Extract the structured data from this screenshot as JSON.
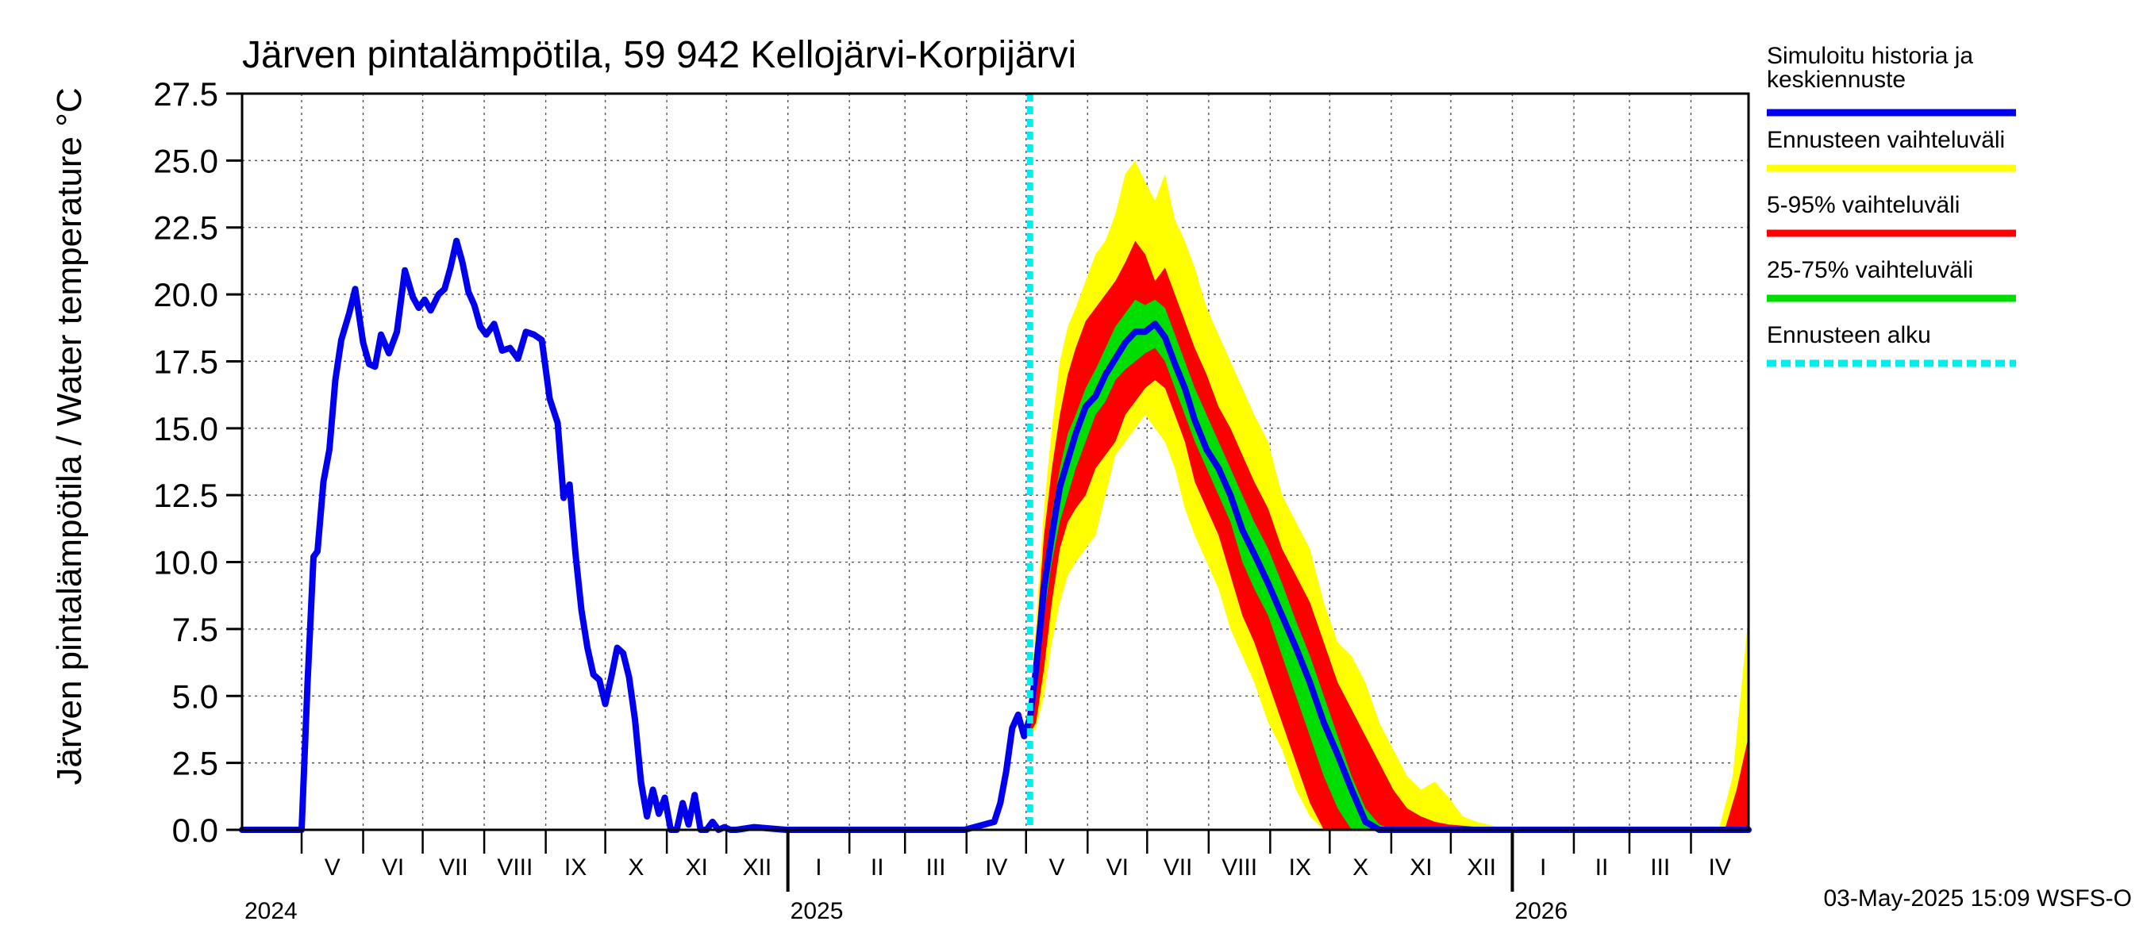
{
  "chart_data": {
    "type": "area",
    "title": "Järven pintalämpötila, 59 942 Kellojärvi-Korpijärvi",
    "ylabel": "Järven pintalämpötila / Water temperature °C",
    "ylim": [
      0,
      27.5
    ],
    "yticks": [
      "0.0",
      "2.5",
      "5.0",
      "7.5",
      "10.0",
      "12.5",
      "15.0",
      "17.5",
      "20.0",
      "22.5",
      "25.0",
      "27.5"
    ],
    "xlim": [
      "2024-04-01",
      "2026-04-30"
    ],
    "x_month_labels": [
      "V",
      "VI",
      "VII",
      "VIII",
      "IX",
      "X",
      "XI",
      "XII",
      "I",
      "II",
      "III",
      "IV",
      "V",
      "VI",
      "VII",
      "VIII",
      "IX",
      "X",
      "XI",
      "XII",
      "I",
      "II",
      "III",
      "IV"
    ],
    "x_year_labels": [
      "2024",
      "2025",
      "2026"
    ],
    "grid": true,
    "forecast_start": "2025-05-03",
    "legend_position": "right",
    "legend": [
      {
        "label_line1": "Simuloitu historia ja",
        "label_line2": "keskiennuste",
        "color": "#0000ee",
        "style": "solid"
      },
      {
        "label_line1": "Ennusteen vaihteluväli",
        "label_line2": "",
        "color": "#ffff00",
        "style": "solid"
      },
      {
        "label_line1": "5-95% vaihteluväli",
        "label_line2": "",
        "color": "#ff0000",
        "style": "solid"
      },
      {
        "label_line1": "25-75% vaihteluväli",
        "label_line2": "",
        "color": "#00dd00",
        "style": "solid"
      },
      {
        "label_line1": "Ennusteen alku",
        "label_line2": "",
        "color": "#00eeee",
        "style": "dashed"
      }
    ],
    "series": [
      {
        "name": "Simuloitu historia ja keskiennuste",
        "color": "#0000ee",
        "x": [
          "2024-04-01",
          "2024-05-01",
          "2024-05-04",
          "2024-05-07",
          "2024-05-09",
          "2024-05-12",
          "2024-05-15",
          "2024-05-18",
          "2024-05-21",
          "2024-05-25",
          "2024-05-28",
          "2024-06-01",
          "2024-06-04",
          "2024-06-07",
          "2024-06-10",
          "2024-06-14",
          "2024-06-18",
          "2024-06-22",
          "2024-06-26",
          "2024-06-29",
          "2024-07-02",
          "2024-07-05",
          "2024-07-09",
          "2024-07-12",
          "2024-07-15",
          "2024-07-18",
          "2024-07-21",
          "2024-07-24",
          "2024-07-27",
          "2024-07-30",
          "2024-08-02",
          "2024-08-06",
          "2024-08-10",
          "2024-08-14",
          "2024-08-18",
          "2024-08-22",
          "2024-08-26",
          "2024-08-30",
          "2024-09-03",
          "2024-09-07",
          "2024-09-10",
          "2024-09-13",
          "2024-09-16",
          "2024-09-19",
          "2024-09-22",
          "2024-09-25",
          "2024-09-28",
          "2024-10-01",
          "2024-10-04",
          "2024-10-07",
          "2024-10-10",
          "2024-10-13",
          "2024-10-16",
          "2024-10-19",
          "2024-10-22",
          "2024-10-25",
          "2024-10-28",
          "2024-10-31",
          "2024-11-03",
          "2024-11-06",
          "2024-11-09",
          "2024-11-12",
          "2024-11-15",
          "2024-11-18",
          "2024-11-21",
          "2024-11-24",
          "2024-11-27",
          "2024-11-30",
          "2024-12-03",
          "2024-12-06",
          "2024-12-15",
          "2024-12-31",
          "2025-01-31",
          "2025-02-28",
          "2025-03-31",
          "2025-04-15",
          "2025-04-18",
          "2025-04-21",
          "2025-04-24",
          "2025-04-27",
          "2025-04-30",
          "2025-05-03",
          "2025-05-06",
          "2025-05-10",
          "2025-05-14",
          "2025-05-18",
          "2025-05-22",
          "2025-05-26",
          "2025-05-31",
          "2025-06-05",
          "2025-06-10",
          "2025-06-15",
          "2025-06-20",
          "2025-06-25",
          "2025-06-30",
          "2025-07-05",
          "2025-07-10",
          "2025-07-15",
          "2025-07-20",
          "2025-07-25",
          "2025-07-31",
          "2025-08-06",
          "2025-08-12",
          "2025-08-18",
          "2025-08-24",
          "2025-08-31",
          "2025-09-07",
          "2025-09-14",
          "2025-09-21",
          "2025-09-28",
          "2025-10-05",
          "2025-10-12",
          "2025-10-19",
          "2025-10-26",
          "2025-11-02",
          "2025-11-09",
          "2025-11-30",
          "2025-12-31",
          "2026-01-31",
          "2026-02-28",
          "2026-03-31",
          "2026-04-30"
        ],
        "values": [
          0,
          0,
          5.5,
          10.2,
          10.4,
          13.0,
          14.2,
          16.8,
          18.3,
          19.3,
          20.2,
          18.2,
          17.4,
          17.3,
          18.5,
          17.8,
          18.6,
          20.9,
          19.9,
          19.5,
          19.8,
          19.4,
          20.0,
          20.2,
          21.0,
          22.0,
          21.2,
          20.1,
          19.6,
          18.8,
          18.5,
          18.9,
          17.9,
          18.0,
          17.6,
          18.6,
          18.5,
          18.3,
          16.1,
          15.2,
          12.4,
          12.9,
          10.3,
          8.2,
          6.8,
          5.8,
          5.6,
          4.7,
          5.7,
          6.8,
          6.6,
          5.7,
          4.1,
          1.8,
          0.5,
          1.5,
          0.6,
          1.2,
          0.0,
          0.0,
          1.0,
          0.2,
          1.3,
          0.0,
          0.0,
          0.3,
          0.0,
          0.1,
          0.0,
          0.0,
          0.1,
          0,
          0,
          0,
          0,
          0.3,
          1.0,
          2.2,
          3.8,
          4.3,
          3.5,
          4.2,
          6.0,
          9.0,
          11.0,
          12.8,
          13.8,
          14.8,
          15.8,
          16.2,
          17.0,
          17.6,
          18.2,
          18.6,
          18.6,
          18.9,
          18.4,
          17.4,
          16.5,
          15.3,
          14.2,
          13.5,
          12.5,
          11.2,
          10.3,
          9.2,
          8.0,
          6.8,
          5.5,
          4.0,
          2.8,
          1.5,
          0.3,
          0,
          0,
          0,
          0,
          0,
          0,
          0,
          0,
          0
        ]
      }
    ],
    "bands": [
      {
        "name": "Ennusteen vaihteluväli",
        "color": "#ffff00",
        "x": [
          "2025-05-03",
          "2025-05-06",
          "2025-05-10",
          "2025-05-14",
          "2025-05-18",
          "2025-05-22",
          "2025-05-26",
          "2025-05-31",
          "2025-06-05",
          "2025-06-10",
          "2025-06-15",
          "2025-06-20",
          "2025-06-25",
          "2025-06-30",
          "2025-07-05",
          "2025-07-10",
          "2025-07-15",
          "2025-07-20",
          "2025-07-25",
          "2025-07-31",
          "2025-08-06",
          "2025-08-12",
          "2025-08-18",
          "2025-08-24",
          "2025-08-31",
          "2025-09-07",
          "2025-09-14",
          "2025-09-21",
          "2025-09-28",
          "2025-10-05",
          "2025-10-12",
          "2025-10-19",
          "2025-10-26",
          "2025-11-02",
          "2025-11-09",
          "2025-11-16",
          "2025-11-23",
          "2025-11-30",
          "2025-12-07",
          "2025-12-14",
          "2025-12-31",
          "2026-01-31",
          "2026-02-28",
          "2026-03-31",
          "2026-04-15",
          "2026-04-22",
          "2026-04-30"
        ],
        "upper": [
          4.5,
          7.8,
          12.0,
          15.0,
          17.5,
          18.8,
          19.5,
          20.5,
          21.5,
          22.0,
          23.0,
          24.5,
          25.0,
          24.2,
          23.5,
          24.5,
          22.8,
          22.0,
          21.0,
          19.5,
          18.5,
          17.5,
          16.5,
          15.5,
          14.5,
          12.5,
          11.5,
          10.5,
          8.5,
          7.0,
          6.5,
          5.5,
          4.0,
          3.0,
          2.0,
          1.5,
          1.8,
          1.2,
          0.5,
          0.3,
          0,
          0,
          0,
          0,
          0,
          2.0,
          8.0
        ],
        "lower": [
          3.5,
          3.8,
          5.0,
          7.0,
          8.5,
          9.5,
          10.0,
          10.5,
          11.0,
          12.5,
          14.0,
          14.5,
          15.0,
          15.5,
          15.0,
          14.5,
          13.5,
          12.0,
          11.0,
          10.0,
          9.0,
          7.5,
          6.5,
          5.5,
          4.0,
          3.0,
          1.5,
          0.5,
          0,
          0,
          0,
          0,
          0,
          0,
          0,
          0,
          0,
          0,
          0,
          0,
          0,
          0,
          0,
          0,
          0,
          0,
          0
        ]
      },
      {
        "name": "5-95% vaihteluväli",
        "color": "#ff0000",
        "x": [
          "2025-05-03",
          "2025-05-06",
          "2025-05-10",
          "2025-05-14",
          "2025-05-18",
          "2025-05-22",
          "2025-05-26",
          "2025-05-31",
          "2025-06-05",
          "2025-06-10",
          "2025-06-15",
          "2025-06-20",
          "2025-06-25",
          "2025-06-30",
          "2025-07-05",
          "2025-07-10",
          "2025-07-15",
          "2025-07-20",
          "2025-07-25",
          "2025-07-31",
          "2025-08-06",
          "2025-08-12",
          "2025-08-18",
          "2025-08-24",
          "2025-08-31",
          "2025-09-07",
          "2025-09-14",
          "2025-09-21",
          "2025-09-28",
          "2025-10-05",
          "2025-10-12",
          "2025-10-19",
          "2025-10-26",
          "2025-11-02",
          "2025-11-09",
          "2025-11-16",
          "2025-11-23",
          "2025-11-30",
          "2025-12-31",
          "2026-01-31",
          "2026-02-28",
          "2026-03-31",
          "2026-04-18",
          "2026-04-24",
          "2026-04-30"
        ],
        "upper": [
          4.2,
          7.0,
          11.0,
          13.5,
          15.5,
          17.0,
          18.0,
          19.0,
          19.5,
          20.0,
          20.5,
          21.2,
          22.0,
          21.5,
          20.5,
          21.0,
          20.0,
          19.0,
          18.0,
          17.0,
          15.8,
          15.0,
          14.0,
          13.0,
          12.0,
          10.5,
          9.5,
          8.5,
          7.0,
          5.5,
          4.5,
          3.5,
          2.5,
          1.5,
          0.8,
          0.5,
          0.3,
          0.2,
          0,
          0,
          0,
          0,
          0,
          1.5,
          3.5
        ],
        "lower": [
          3.6,
          4.0,
          6.0,
          8.5,
          10.5,
          11.5,
          12.0,
          12.5,
          13.5,
          14.0,
          14.5,
          15.5,
          16.0,
          16.5,
          16.8,
          16.5,
          15.5,
          14.5,
          13.0,
          12.0,
          11.0,
          9.5,
          8.0,
          7.0,
          5.5,
          4.0,
          2.5,
          1.0,
          0,
          0,
          0,
          0,
          0,
          0,
          0,
          0,
          0,
          0,
          0,
          0,
          0,
          0,
          0,
          0,
          0
        ]
      },
      {
        "name": "25-75% vaihteluväli",
        "color": "#00dd00",
        "x": [
          "2025-05-03",
          "2025-05-06",
          "2025-05-10",
          "2025-05-14",
          "2025-05-18",
          "2025-05-22",
          "2025-05-26",
          "2025-05-31",
          "2025-06-05",
          "2025-06-10",
          "2025-06-15",
          "2025-06-20",
          "2025-06-25",
          "2025-06-30",
          "2025-07-05",
          "2025-07-10",
          "2025-07-15",
          "2025-07-20",
          "2025-07-25",
          "2025-07-31",
          "2025-08-06",
          "2025-08-12",
          "2025-08-18",
          "2025-08-24",
          "2025-08-31",
          "2025-09-07",
          "2025-09-14",
          "2025-09-21",
          "2025-09-28",
          "2025-10-05",
          "2025-10-12",
          "2025-10-19",
          "2025-10-26",
          "2025-11-02",
          "2025-11-09",
          "2025-11-16",
          "2025-11-30"
        ],
        "upper": [
          4.2,
          6.5,
          9.8,
          11.8,
          13.5,
          14.8,
          15.5,
          16.5,
          17.2,
          18.0,
          18.8,
          19.3,
          19.8,
          19.6,
          19.8,
          19.5,
          18.5,
          17.5,
          16.5,
          15.5,
          14.5,
          13.5,
          12.5,
          11.5,
          10.5,
          9.2,
          7.8,
          6.5,
          5.0,
          3.5,
          2.0,
          0.8,
          0.2,
          0,
          0,
          0,
          0
        ],
        "lower": [
          3.8,
          5.0,
          8.0,
          10.0,
          11.5,
          12.5,
          13.5,
          14.5,
          15.5,
          16.0,
          16.8,
          17.2,
          17.5,
          17.8,
          18.0,
          17.5,
          16.5,
          15.5,
          14.5,
          13.5,
          12.5,
          11.5,
          10.0,
          9.0,
          8.0,
          6.5,
          5.0,
          3.5,
          2.0,
          0.8,
          0,
          0,
          0,
          0,
          0,
          0,
          0
        ]
      }
    ]
  },
  "footer": {
    "timestamp": "03-May-2025 15:09 WSFS-O"
  }
}
